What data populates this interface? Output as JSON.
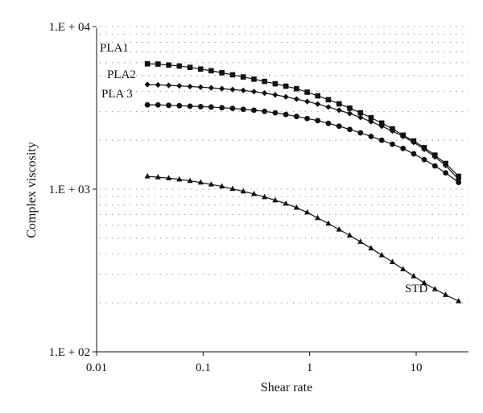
{
  "chart_data": {
    "type": "line",
    "xlabel": "Shear rate",
    "ylabel": "Complex viscosity",
    "xscale": "log",
    "yscale": "log",
    "xlim": [
      0.01,
      30
    ],
    "ylim": [
      100,
      10000
    ],
    "xticks": [
      {
        "value": 0.01,
        "label": "0.01"
      },
      {
        "value": 0.1,
        "label": "0.1"
      },
      {
        "value": 1,
        "label": "1"
      },
      {
        "value": 10,
        "label": "10"
      }
    ],
    "yticks": [
      {
        "value": 100,
        "label": "1.E + 02"
      },
      {
        "value": 1000,
        "label": "1.E + 03"
      },
      {
        "value": 10000,
        "label": "1.E + 04"
      }
    ],
    "grid": "dotted horizontal",
    "series": [
      {
        "name": "PLA1",
        "marker": "square",
        "x": [
          0.03,
          0.0377,
          0.0475,
          0.0598,
          0.0753,
          0.0948,
          0.119,
          0.15,
          0.189,
          0.238,
          0.3,
          0.377,
          0.475,
          0.598,
          0.753,
          0.948,
          1.19,
          1.5,
          1.89,
          2.38,
          3.0,
          3.77,
          4.75,
          5.98,
          7.53,
          9.48,
          11.9,
          15.0,
          18.9,
          25.0
        ],
        "y": [
          5900,
          5880,
          5800,
          5720,
          5610,
          5480,
          5350,
          5200,
          5050,
          4900,
          4750,
          4600,
          4450,
          4300,
          4150,
          3950,
          3750,
          3550,
          3350,
          3150,
          2950,
          2750,
          2550,
          2350,
          2150,
          1980,
          1800,
          1620,
          1440,
          1200
        ]
      },
      {
        "name": "PLA2",
        "marker": "diamond",
        "x": [
          0.03,
          0.0377,
          0.0475,
          0.0598,
          0.0753,
          0.0948,
          0.119,
          0.15,
          0.189,
          0.238,
          0.3,
          0.377,
          0.475,
          0.598,
          0.753,
          0.948,
          1.19,
          1.5,
          1.89,
          2.38,
          3.0,
          3.77,
          4.75,
          5.98,
          7.53,
          9.48,
          11.9,
          15.0,
          18.9,
          25.0
        ],
        "y": [
          4400,
          4380,
          4350,
          4320,
          4280,
          4240,
          4200,
          4150,
          4100,
          4050,
          3980,
          3900,
          3800,
          3700,
          3580,
          3460,
          3340,
          3200,
          3060,
          2920,
          2760,
          2600,
          2440,
          2280,
          2110,
          1940,
          1760,
          1580,
          1400,
          1150
        ]
      },
      {
        "name": "PLA 3",
        "marker": "circle",
        "x": [
          0.03,
          0.0377,
          0.0475,
          0.0598,
          0.0753,
          0.0948,
          0.119,
          0.15,
          0.189,
          0.238,
          0.3,
          0.377,
          0.475,
          0.598,
          0.753,
          0.948,
          1.19,
          1.5,
          1.89,
          2.38,
          3.0,
          3.77,
          4.75,
          5.98,
          7.53,
          9.48,
          11.9,
          15.0,
          18.9,
          25.0
        ],
        "y": [
          3300,
          3300,
          3280,
          3260,
          3240,
          3220,
          3200,
          3170,
          3140,
          3100,
          3060,
          3010,
          2950,
          2880,
          2800,
          2720,
          2640,
          2540,
          2440,
          2330,
          2220,
          2110,
          2000,
          1890,
          1780,
          1650,
          1520,
          1390,
          1260,
          1100
        ]
      },
      {
        "name": "STD",
        "marker": "triangle",
        "x": [
          0.03,
          0.0377,
          0.0475,
          0.0598,
          0.0753,
          0.0948,
          0.119,
          0.15,
          0.189,
          0.238,
          0.3,
          0.377,
          0.475,
          0.598,
          0.753,
          0.948,
          1.19,
          1.5,
          1.89,
          2.38,
          3.0,
          3.77,
          4.75,
          5.98,
          7.53,
          9.48,
          11.9,
          15.0,
          18.9,
          25.0
        ],
        "y": [
          1200,
          1185,
          1170,
          1150,
          1125,
          1100,
          1070,
          1040,
          1005,
          970,
          935,
          895,
          855,
          815,
          770,
          720,
          665,
          615,
          565,
          520,
          475,
          433,
          393,
          357,
          322,
          292,
          265,
          243,
          224,
          205
        ]
      }
    ]
  }
}
